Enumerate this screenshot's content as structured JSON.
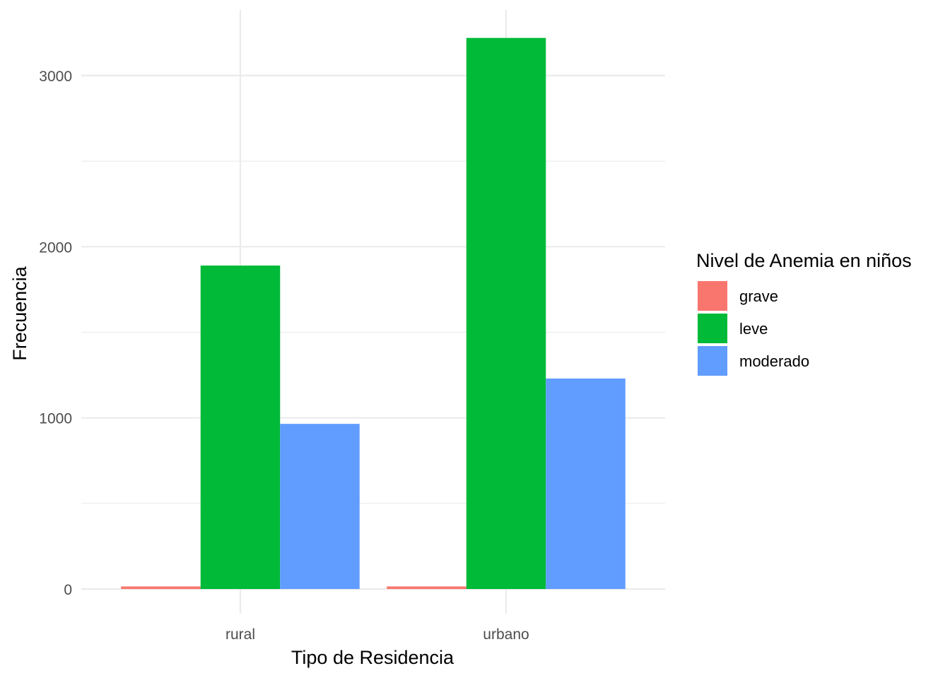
{
  "chart_data": {
    "type": "bar",
    "grouped": true,
    "categories": [
      "rural",
      "urbano"
    ],
    "series": [
      {
        "name": "grave",
        "color": "#F8766D",
        "values": [
          15,
          15
        ]
      },
      {
        "name": "leve",
        "color": "#00BA38",
        "values": [
          1890,
          3220
        ]
      },
      {
        "name": "moderado",
        "color": "#619CFF",
        "values": [
          965,
          1230
        ]
      }
    ],
    "xlabel": "Tipo de Residencia",
    "ylabel": "Frecuencia",
    "ylim": [
      0,
      3380
    ],
    "yticks": [
      0,
      1000,
      2000,
      3000
    ],
    "grid": true,
    "legend": {
      "title": "Nivel de Anemia en niños",
      "position": "right"
    }
  }
}
